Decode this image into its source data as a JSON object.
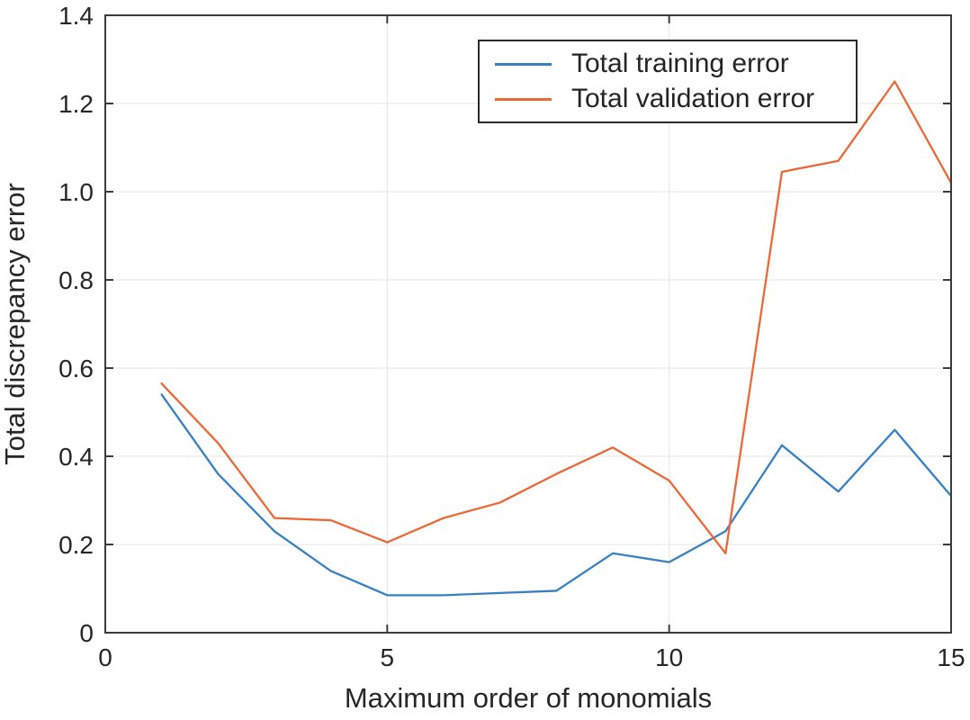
{
  "chart_data": {
    "type": "line",
    "title": "",
    "xlabel": "Maximum order of monomials",
    "ylabel": "Total discrepancy error",
    "xlim": [
      0,
      15
    ],
    "ylim": [
      0,
      1.4
    ],
    "grid": true,
    "legend_position": "inside-top-center",
    "x": [
      1,
      2,
      3,
      4,
      5,
      6,
      7,
      8,
      9,
      10,
      11,
      12,
      13,
      14,
      15
    ],
    "series": [
      {
        "name": "Total training error",
        "color": "#3581C4",
        "values": [
          0.54,
          0.36,
          0.23,
          0.14,
          0.085,
          0.085,
          0.09,
          0.095,
          0.18,
          0.16,
          0.23,
          0.425,
          0.32,
          0.46,
          0.31
        ]
      },
      {
        "name": "Total validation error",
        "color": "#EC6835",
        "values": [
          0.565,
          0.43,
          0.26,
          0.255,
          0.205,
          0.26,
          0.295,
          0.36,
          0.42,
          0.345,
          0.18,
          1.045,
          1.07,
          1.25,
          1.02
        ]
      }
    ],
    "x_ticks": {
      "values": [
        0,
        5,
        10,
        15
      ],
      "labels": [
        "0",
        "5",
        "10",
        "15"
      ]
    },
    "y_ticks": {
      "values": [
        0,
        0.2,
        0.4,
        0.6,
        0.8,
        1.0,
        1.2,
        1.4
      ],
      "labels": [
        "0",
        "0.2",
        "0.4",
        "0.6",
        "0.8",
        "1.0",
        "1.2",
        "1.4"
      ]
    },
    "axis_color": "#3C3C3C",
    "grid_color": "#EAEAEA",
    "text_color": "#262626"
  }
}
